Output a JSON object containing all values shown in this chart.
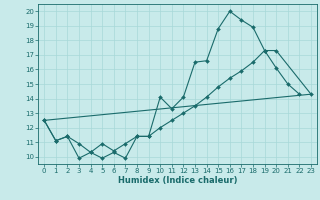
{
  "xlabel": "Humidex (Indice chaleur)",
  "bg_color": "#c8eaea",
  "grid_color": "#a8d8d8",
  "line_color": "#1a6b6b",
  "xlim": [
    -0.5,
    23.5
  ],
  "ylim": [
    9.5,
    20.5
  ],
  "xticks": [
    0,
    1,
    2,
    3,
    4,
    5,
    6,
    7,
    8,
    9,
    10,
    11,
    12,
    13,
    14,
    15,
    16,
    17,
    18,
    19,
    20,
    21,
    22,
    23
  ],
  "yticks": [
    10,
    11,
    12,
    13,
    14,
    15,
    16,
    17,
    18,
    19,
    20
  ],
  "line1_x": [
    0,
    1,
    2,
    3,
    4,
    5,
    6,
    7,
    8,
    9,
    10,
    11,
    12,
    13,
    14,
    15,
    16,
    17,
    18,
    19,
    20,
    21,
    22
  ],
  "line1_y": [
    12.5,
    11.1,
    11.4,
    9.9,
    10.3,
    9.9,
    10.3,
    9.9,
    11.4,
    11.4,
    14.1,
    13.3,
    14.1,
    16.5,
    16.6,
    18.8,
    20.0,
    19.4,
    18.9,
    17.3,
    16.1,
    15.0,
    14.3
  ],
  "line2_x": [
    0,
    1,
    2,
    3,
    4,
    5,
    6,
    7,
    8,
    9,
    10,
    11,
    12,
    13,
    14,
    15,
    16,
    17,
    18,
    19,
    20,
    23
  ],
  "line2_y": [
    12.5,
    11.1,
    11.4,
    10.9,
    10.3,
    10.9,
    10.4,
    10.9,
    11.4,
    11.4,
    12.0,
    12.5,
    13.0,
    13.5,
    14.1,
    14.8,
    15.4,
    15.9,
    16.5,
    17.3,
    17.3,
    14.3
  ],
  "line3_x": [
    0,
    23
  ],
  "line3_y": [
    12.5,
    14.3
  ]
}
